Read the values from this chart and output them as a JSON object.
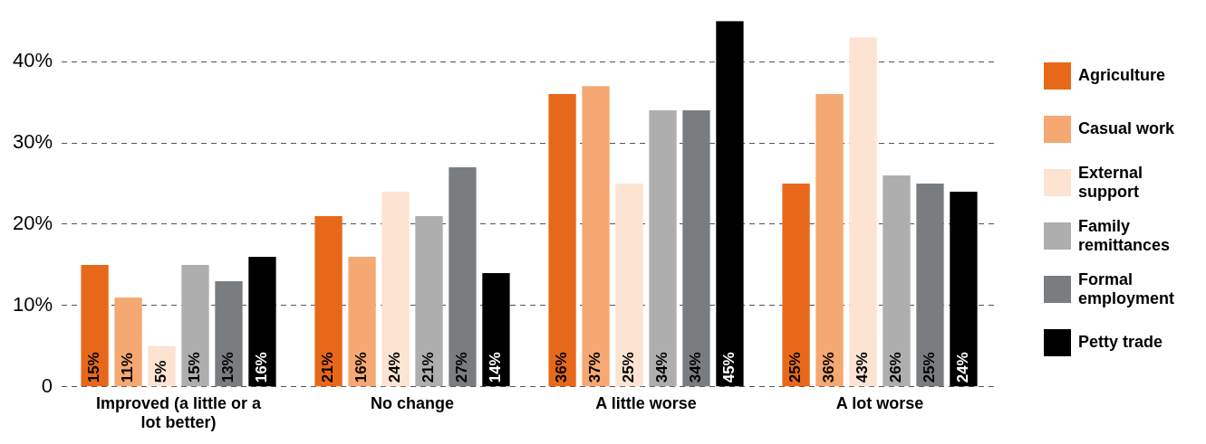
{
  "chart_data": {
    "type": "bar",
    "categories": [
      "Improved (a little or a lot better)",
      "No change",
      "A little worse",
      "A lot worse"
    ],
    "series": [
      {
        "name": "Agriculture",
        "color": "#e8681a",
        "values": [
          15,
          21,
          36,
          25
        ],
        "value_labels": [
          "15%",
          "21%",
          "36%",
          "25%"
        ]
      },
      {
        "name": "Casual work",
        "color": "#f5a872",
        "values": [
          11,
          16,
          37,
          36
        ],
        "value_labels": [
          "11%",
          "16%",
          "37%",
          "36%"
        ]
      },
      {
        "name": "External support",
        "color": "#fce3d2",
        "values": [
          5,
          24,
          25,
          43
        ],
        "value_labels": [
          "5%",
          "24%",
          "25%",
          "43%"
        ]
      },
      {
        "name": "Family remittances",
        "color": "#aeaeae",
        "values": [
          15,
          21,
          34,
          26
        ],
        "value_labels": [
          "15%",
          "21%",
          "34%",
          "26%"
        ]
      },
      {
        "name": "Formal employment",
        "color": "#7a7d80",
        "values": [
          13,
          27,
          34,
          25
        ],
        "value_labels": [
          "13%",
          "27%",
          "34%",
          "25%"
        ]
      },
      {
        "name": "Petty trade",
        "color": "#000000",
        "values": [
          16,
          14,
          45,
          24
        ],
        "value_labels": [
          "16%",
          "14%",
          "45%",
          "24%"
        ]
      }
    ],
    "ylim": [
      0,
      45
    ],
    "yticks": [
      0,
      {
        "value": 10,
        "label": "10%"
      },
      {
        "value": 20,
        "label": "20%"
      },
      {
        "value": 30,
        "label": "30%"
      },
      {
        "value": 40,
        "label": "40%"
      }
    ],
    "grid": "y",
    "legend": "right"
  }
}
